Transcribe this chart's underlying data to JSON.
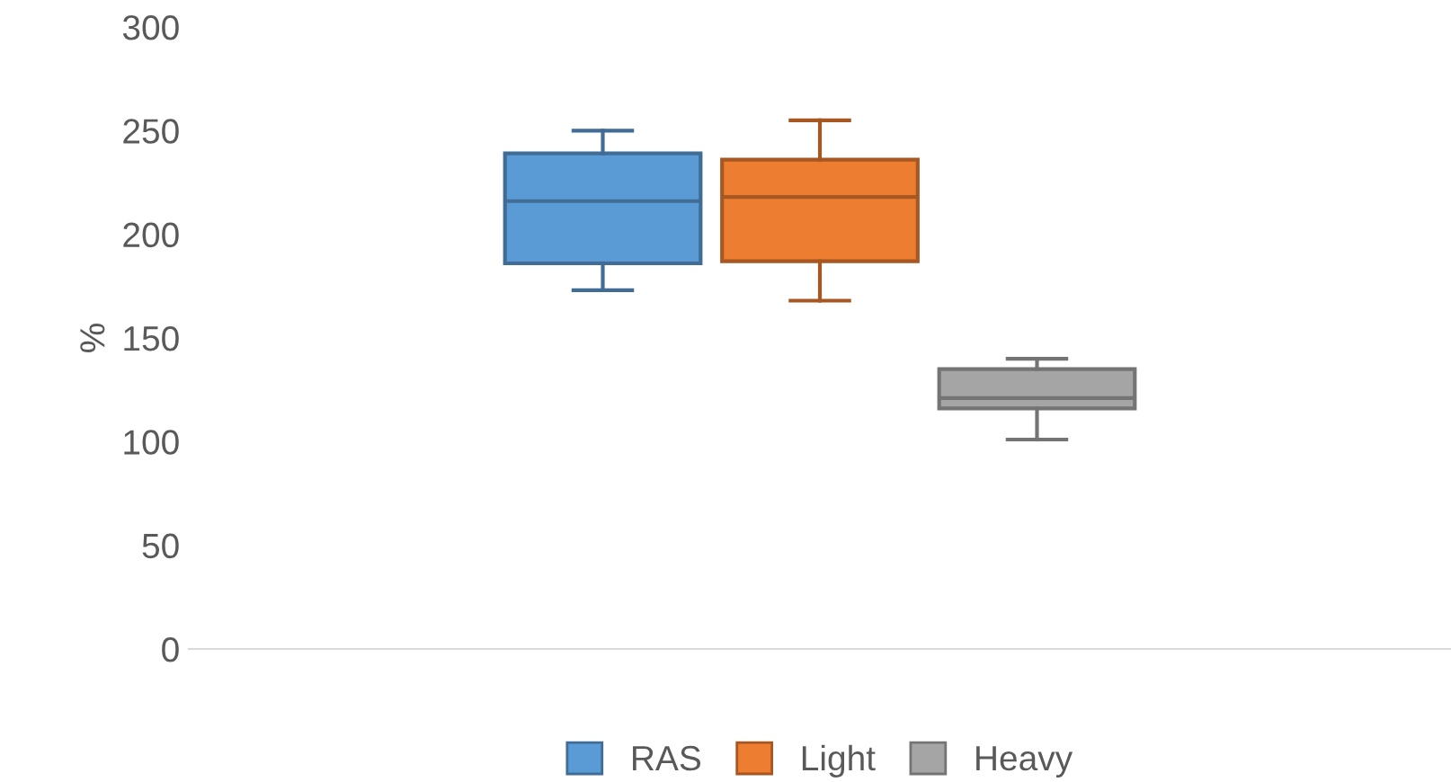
{
  "chart_data": {
    "type": "box",
    "ylabel": "%",
    "categories": [
      null
    ],
    "series": [
      {
        "name": "RAS",
        "color": "#5b9bd5",
        "boxes": [
          {
            "low": 173,
            "q1": 186,
            "median": 216,
            "q3": 239,
            "high": 250
          }
        ]
      },
      {
        "name": "Light",
        "color": "#ed7d31",
        "boxes": [
          {
            "low": 168,
            "q1": 187,
            "median": 218,
            "q3": 236,
            "high": 255
          }
        ]
      },
      {
        "name": "Heavy",
        "color": "#a5a5a5",
        "boxes": [
          {
            "low": 101,
            "q1": 116,
            "median": 121,
            "q3": 135,
            "high": 140
          }
        ]
      }
    ],
    "ylim": [
      0,
      300
    ],
    "yticks": [
      0,
      50,
      100,
      150,
      200,
      250,
      300
    ],
    "grid": false,
    "legend": "bottom"
  }
}
